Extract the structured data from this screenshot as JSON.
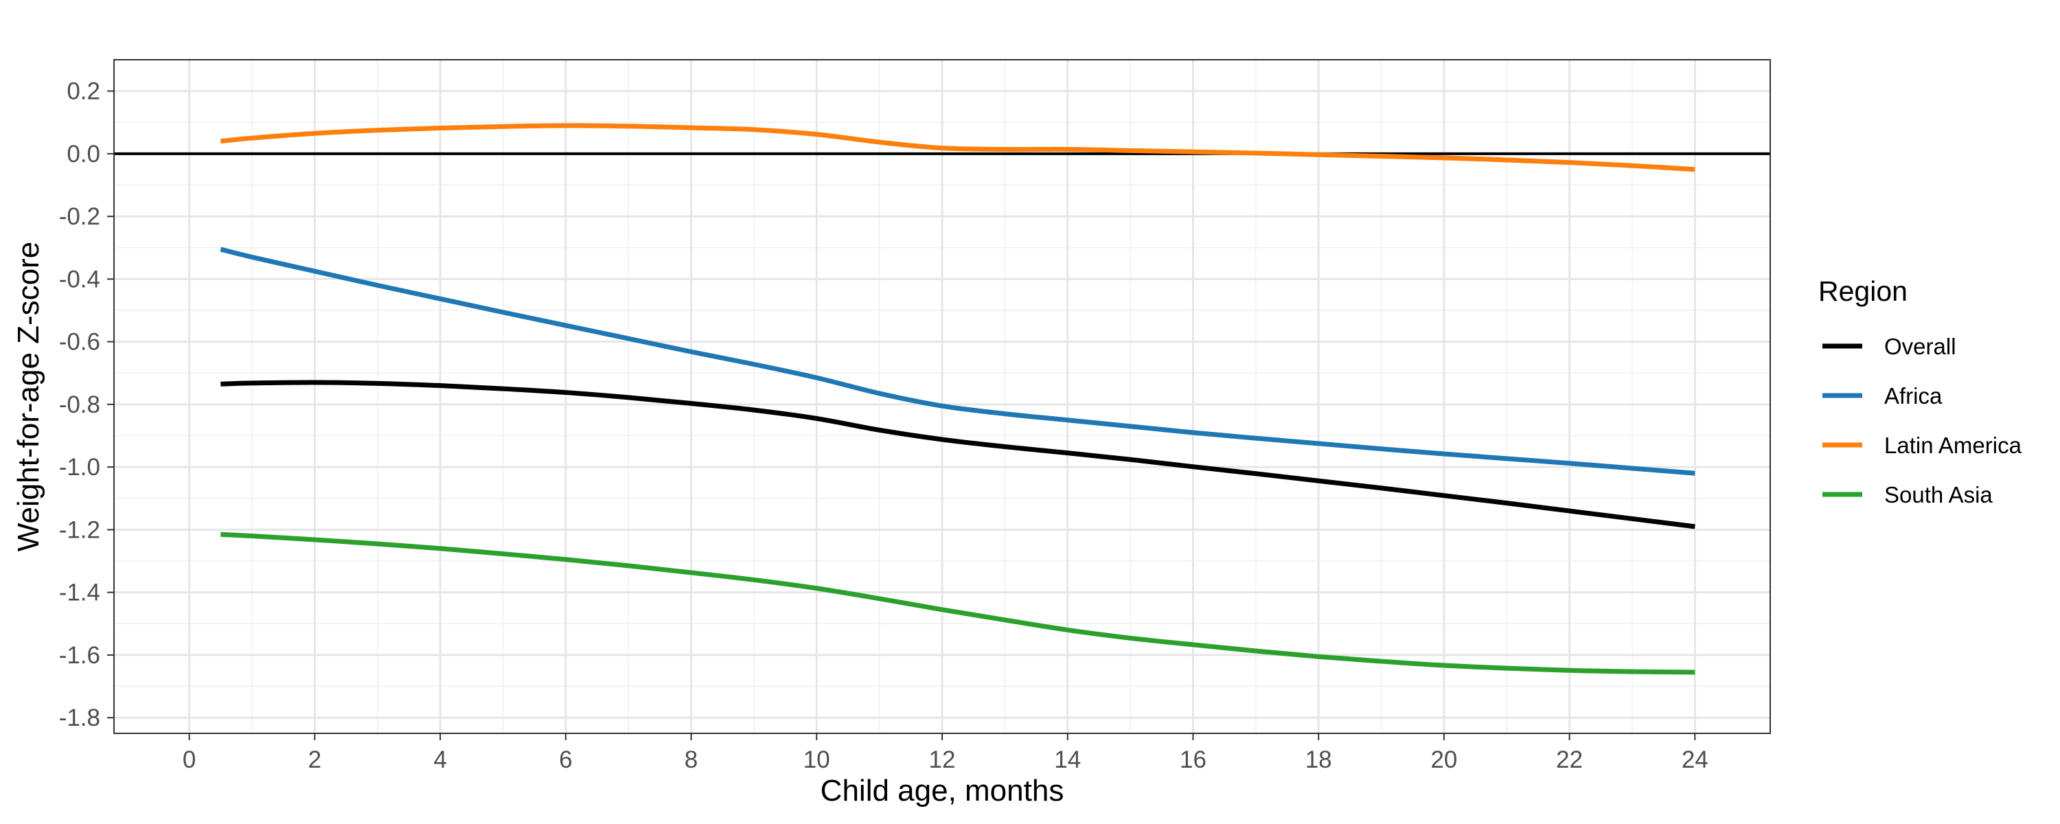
{
  "chart_data": {
    "type": "line",
    "title": "",
    "xlabel": "Child age, months",
    "ylabel": "Weight-for-age Z-score",
    "xlim": [
      -1.2,
      25.2
    ],
    "ylim": [
      -1.85,
      0.3
    ],
    "x_ticks": [
      0,
      2,
      4,
      6,
      8,
      10,
      12,
      14,
      16,
      18,
      20,
      22,
      24
    ],
    "y_ticks": [
      0.2,
      0.0,
      -0.2,
      -0.4,
      -0.6,
      -0.8,
      -1.0,
      -1.2,
      -1.4,
      -1.6,
      -1.8
    ],
    "x_tick_labels": [
      "0",
      "2",
      "4",
      "6",
      "8",
      "10",
      "12",
      "14",
      "16",
      "18",
      "20",
      "22",
      "24"
    ],
    "y_tick_labels": [
      "0.2",
      "0.0",
      "-0.2",
      "-0.4",
      "-0.6",
      "-0.8",
      "-1.0",
      "-1.2",
      "-1.4",
      "-1.6",
      "-1.8"
    ],
    "grid": true,
    "reference_line_y": 0,
    "legend": {
      "title": "Region",
      "position": "right"
    },
    "series": [
      {
        "name": "Overall",
        "color": "#000000",
        "x": [
          0.5,
          1,
          2,
          3,
          4,
          5,
          6,
          7,
          8,
          9,
          10,
          11,
          12,
          13,
          14,
          15,
          16,
          17,
          18,
          19,
          20,
          21,
          22,
          23,
          24
        ],
        "y": [
          -0.735,
          -0.732,
          -0.73,
          -0.733,
          -0.74,
          -0.75,
          -0.762,
          -0.778,
          -0.797,
          -0.818,
          -0.845,
          -0.882,
          -0.912,
          -0.935,
          -0.955,
          -0.976,
          -0.999,
          -1.021,
          -1.044,
          -1.067,
          -1.091,
          -1.115,
          -1.14,
          -1.165,
          -1.19
        ]
      },
      {
        "name": "Africa",
        "color": "#1f77b4",
        "x": [
          0.5,
          1,
          2,
          3,
          4,
          5,
          6,
          7,
          8,
          9,
          10,
          11,
          12,
          13,
          14,
          15,
          16,
          17,
          18,
          19,
          20,
          21,
          22,
          23,
          24
        ],
        "y": [
          -0.305,
          -0.33,
          -0.375,
          -0.42,
          -0.463,
          -0.506,
          -0.548,
          -0.59,
          -0.632,
          -0.672,
          -0.715,
          -0.765,
          -0.805,
          -0.83,
          -0.85,
          -0.87,
          -0.89,
          -0.908,
          -0.925,
          -0.942,
          -0.958,
          -0.973,
          -0.988,
          -1.004,
          -1.02
        ]
      },
      {
        "name": "Latin America",
        "color": "#ff7f0e",
        "x": [
          0.5,
          1,
          2,
          3,
          4,
          5,
          6,
          7,
          8,
          9,
          10,
          11,
          12,
          13,
          14,
          15,
          16,
          17,
          18,
          19,
          20,
          21,
          22,
          23,
          24
        ],
        "y": [
          0.04,
          0.05,
          0.065,
          0.075,
          0.082,
          0.087,
          0.09,
          0.088,
          0.083,
          0.077,
          0.062,
          0.037,
          0.018,
          0.014,
          0.014,
          0.01,
          0.006,
          0.002,
          -0.003,
          -0.008,
          -0.013,
          -0.02,
          -0.028,
          -0.038,
          -0.05
        ]
      },
      {
        "name": "South Asia",
        "color": "#2ca02c",
        "x": [
          0.5,
          1,
          2,
          3,
          4,
          5,
          6,
          7,
          8,
          9,
          10,
          11,
          12,
          13,
          14,
          15,
          16,
          17,
          18,
          19,
          20,
          21,
          22,
          23,
          24
        ],
        "y": [
          -1.215,
          -1.22,
          -1.232,
          -1.245,
          -1.26,
          -1.277,
          -1.295,
          -1.315,
          -1.337,
          -1.36,
          -1.387,
          -1.42,
          -1.455,
          -1.488,
          -1.52,
          -1.546,
          -1.567,
          -1.587,
          -1.605,
          -1.62,
          -1.633,
          -1.642,
          -1.649,
          -1.653,
          -1.655
        ]
      }
    ]
  }
}
